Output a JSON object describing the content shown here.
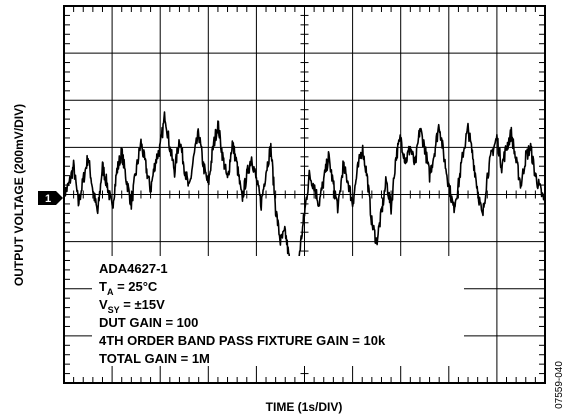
{
  "chart_data": {
    "type": "line",
    "title": "",
    "xlabel": "TIME (1s/DIV)",
    "ylabel": "OUTPUT VOLTAGE (200mV/DIV)",
    "x_units": "s",
    "y_units": "mV",
    "xlim": [
      0,
      10
    ],
    "ylim": [
      -800,
      800
    ],
    "x_divisions": 10,
    "y_divisions": 8,
    "grid": true,
    "channel_marker": "1",
    "annotations": [
      "ADA4627-1",
      "T_A = 25°C",
      "V_SY = ±15V",
      "DUT GAIN = 100",
      "4TH ORDER BAND PASS FIXTURE GAIN = 10k",
      "TOTAL GAIN = 1M"
    ],
    "figure_id": "07559-040",
    "series": [
      {
        "x": [
          0.0,
          0.1,
          0.2,
          0.3,
          0.4,
          0.5,
          0.6,
          0.7,
          0.8,
          0.9,
          1.0,
          1.1,
          1.2,
          1.3,
          1.4,
          1.5,
          1.6,
          1.7,
          1.8,
          1.9,
          2.0,
          2.1,
          2.2,
          2.3,
          2.4,
          2.5,
          2.6,
          2.7,
          2.8,
          2.9,
          3.0,
          3.1,
          3.2,
          3.3,
          3.4,
          3.5,
          3.6,
          3.7,
          3.8,
          3.9,
          4.0,
          4.1,
          4.2,
          4.3,
          4.4,
          4.5,
          4.6,
          4.7,
          4.8,
          4.9,
          5.0,
          5.1,
          5.2,
          5.3,
          5.4,
          5.5,
          5.6,
          5.7,
          5.8,
          5.9,
          6.0,
          6.1,
          6.2,
          6.3,
          6.4,
          6.5,
          6.6,
          6.7,
          6.8,
          6.9,
          7.0,
          7.1,
          7.2,
          7.3,
          7.4,
          7.5,
          7.6,
          7.7,
          7.8,
          7.9,
          8.0,
          8.1,
          8.2,
          8.3,
          8.4,
          8.5,
          8.6,
          8.7,
          8.8,
          8.9,
          9.0,
          9.1,
          9.2,
          9.3,
          9.4,
          9.5,
          9.6,
          9.7,
          9.8,
          9.9,
          10.0
        ],
        "values": [
          0,
          40,
          120,
          -40,
          60,
          160,
          20,
          -80,
          120,
          40,
          -60,
          100,
          180,
          60,
          -40,
          100,
          220,
          120,
          20,
          140,
          200,
          340,
          200,
          100,
          240,
          120,
          20,
          160,
          260,
          120,
          40,
          200,
          300,
          160,
          60,
          220,
          120,
          -20,
          80,
          160,
          60,
          -40,
          100,
          200,
          -60,
          -200,
          -160,
          -300,
          -380,
          -240,
          -80,
          80,
          40,
          -40,
          60,
          160,
          40,
          -60,
          120,
          60,
          -40,
          100,
          200,
          80,
          -120,
          -200,
          -80,
          60,
          -60,
          160,
          240,
          140,
          200,
          120,
          280,
          200,
          80,
          180,
          300,
          160,
          40,
          -60,
          40,
          180,
          280,
          160,
          20,
          -100,
          80,
          180,
          240,
          120,
          200,
          260,
          140,
          40,
          160,
          200,
          80,
          20,
          -40
        ]
      }
    ]
  }
}
